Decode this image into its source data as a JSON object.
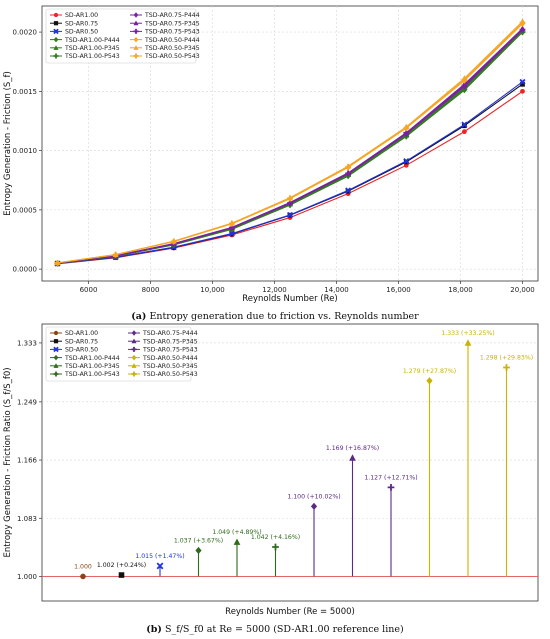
{
  "panels": [
    {
      "caption_prefix": "(a)",
      "caption_text": "Entropy generation due to friction vs. Reynolds number"
    },
    {
      "caption_prefix": "(b)",
      "caption_text": "S_f/S_f0 at Re = 5000 (SD-AR1.00 reference line)"
    }
  ],
  "chart_data": [
    {
      "type": "line",
      "title": "",
      "xlabel": "Reynolds Number (Re)",
      "ylabel": "Entropy Generation - Friction (S_f)",
      "xlim": [
        4500,
        20500
      ],
      "ylim": [
        -0.0001,
        0.00222
      ],
      "xticks": [
        6000,
        8000,
        10000,
        12000,
        14000,
        16000,
        18000,
        20000
      ],
      "xtick_labels": [
        "6000",
        "8000",
        "10,000",
        "12,000",
        "14,000",
        "16,000",
        "18,000",
        "20,000"
      ],
      "yticks": [
        0,
        0.0005,
        0.001,
        0.0015,
        0.002
      ],
      "ytick_labels": [
        "0.0000",
        "0.0005",
        "0.0010",
        "0.0015",
        "0.0020"
      ],
      "grid": true,
      "legend_position": "top-left",
      "x": [
        5000,
        6875,
        8750,
        10625,
        12500,
        14375,
        16250,
        18125,
        20000
      ],
      "series": [
        {
          "name": "SD-AR1.00",
          "color": "#e8262a",
          "marker": "circle",
          "values": [
            4.5e-05,
            9.6e-05,
            0.000178,
            0.000288,
            0.000435,
            0.000637,
            0.000876,
            0.00116,
            0.0015
          ]
        },
        {
          "name": "SD-AR0.75",
          "color": "#111111",
          "marker": "square",
          "values": [
            4.7e-05,
            0.0001,
            0.000183,
            0.000297,
            0.000455,
            0.000658,
            0.000905,
            0.00121,
            0.00156
          ]
        },
        {
          "name": "SD-AR0.50",
          "color": "#2233dd",
          "marker": "x",
          "values": [
            4.7e-05,
            0.000101,
            0.000185,
            0.0003,
            0.000458,
            0.000664,
            0.000912,
            0.00122,
            0.00158
          ]
        },
        {
          "name": "TSD-AR1.00-P444",
          "color": "#2f7d1e",
          "marker": "diamond",
          "values": [
            4.8e-05,
            0.000108,
            0.000205,
            0.000336,
            0.00054,
            0.000785,
            0.00112,
            0.00151,
            0.002
          ]
        },
        {
          "name": "TSD-AR1.00-P345",
          "color": "#2f7d1e",
          "marker": "triangle",
          "values": [
            4.9e-05,
            0.00011,
            0.000209,
            0.000342,
            0.00055,
            0.000798,
            0.00113,
            0.00153,
            0.00201
          ]
        },
        {
          "name": "TSD-AR1.00-P543",
          "color": "#2f7d1e",
          "marker": "plus",
          "values": [
            4.8e-05,
            0.000109,
            0.000206,
            0.000338,
            0.000544,
            0.00079,
            0.00112,
            0.00152,
            0.002
          ]
        },
        {
          "name": "TSD-AR0.75-P444",
          "color": "#7a1fa2",
          "marker": "diamond",
          "values": [
            5e-05,
            0.000112,
            0.000213,
            0.000348,
            0.000556,
            0.000805,
            0.00114,
            0.00154,
            0.00202
          ]
        },
        {
          "name": "TSD-AR0.75-P345",
          "color": "#7a1fa2",
          "marker": "triangle",
          "values": [
            5.1e-05,
            0.000114,
            0.000216,
            0.000352,
            0.000562,
            0.000812,
            0.00115,
            0.00156,
            0.00203
          ]
        },
        {
          "name": "TSD-AR0.75-P543",
          "color": "#7a1fa2",
          "marker": "plus",
          "values": [
            5e-05,
            0.000113,
            0.000214,
            0.00035,
            0.000558,
            0.000808,
            0.00115,
            0.00155,
            0.00202
          ]
        },
        {
          "name": "TSD-AR0.50-P444",
          "color": "#f5a623",
          "marker": "diamond",
          "values": [
            5.3e-05,
            0.000121,
            0.000232,
            0.000382,
            0.000594,
            0.000858,
            0.00119,
            0.00159,
            0.00207
          ]
        },
        {
          "name": "TSD-AR0.50-P345",
          "color": "#f5a623",
          "marker": "triangle",
          "values": [
            5.4e-05,
            0.000123,
            0.000236,
            0.000388,
            0.000602,
            0.000868,
            0.0012,
            0.00161,
            0.00209
          ]
        },
        {
          "name": "TSD-AR0.50-P543",
          "color": "#f5a623",
          "marker": "plus",
          "values": [
            5.3e-05,
            0.000122,
            0.000234,
            0.000385,
            0.000598,
            0.000862,
            0.00119,
            0.0016,
            0.00208
          ]
        }
      ]
    },
    {
      "type": "stem",
      "title": "",
      "xlabel": "Reynolds Number (Re = 5000)",
      "ylabel": "Entropy Generation - Friction Ratio (S_f/S_f0)",
      "ylim": [
        0.965,
        1.36
      ],
      "yticks": [
        1.0,
        1.083,
        1.166,
        1.249,
        1.333
      ],
      "ytick_labels": [
        "1.000",
        "1.083",
        "1.166",
        "1.249",
        "1.333"
      ],
      "reference_line": 1.0,
      "grid": true,
      "legend_position": "top-left",
      "series": [
        {
          "name": "SD-AR1.00",
          "color": "#8b4513",
          "marker": "circle",
          "value": 1.0,
          "label": "1.000"
        },
        {
          "name": "SD-AR0.75",
          "color": "#111111",
          "marker": "square",
          "value": 1.002,
          "label": "1.002 (+0.24%)"
        },
        {
          "name": "SD-AR0.50",
          "color": "#2233dd",
          "marker": "x",
          "value": 1.015,
          "label": "1.015 (+1.47%)"
        },
        {
          "name": "TSD-AR1.00-P444",
          "color": "#2f6a1c",
          "marker": "diamond",
          "value": 1.037,
          "label": "1.037 (+3.67%)"
        },
        {
          "name": "TSD-AR1.00-P345",
          "color": "#2f6a1c",
          "marker": "triangle",
          "value": 1.049,
          "label": "1.049 (+4.89%)"
        },
        {
          "name": "TSD-AR1.00-P543",
          "color": "#2f6a1c",
          "marker": "plus",
          "value": 1.042,
          "label": "1.042 (+4.16%)"
        },
        {
          "name": "TSD-AR0.75-P444",
          "color": "#5b2a86",
          "marker": "diamond",
          "value": 1.1,
          "label": "1.100 (+10.02%)"
        },
        {
          "name": "TSD-AR0.75-P345",
          "color": "#5b2a86",
          "marker": "triangle",
          "value": 1.169,
          "label": "1.169 (+16.87%)"
        },
        {
          "name": "TSD-AR0.75-P543",
          "color": "#5b2a86",
          "marker": "plus",
          "value": 1.127,
          "label": "1.127 (+12.71%)"
        },
        {
          "name": "TSD-AR0.50-P444",
          "color": "#c8b400",
          "marker": "diamond",
          "value": 1.279,
          "label": "1.279 (+27.87%)"
        },
        {
          "name": "TSD-AR0.50-P345",
          "color": "#c8b400",
          "marker": "triangle",
          "value": 1.333,
          "label": "1.333 (+33.25%)"
        },
        {
          "name": "TSD-AR0.50-P543",
          "color": "#c8b400",
          "marker": "plus",
          "value": 1.298,
          "label": "1.298 (+29.83%)"
        }
      ]
    }
  ]
}
